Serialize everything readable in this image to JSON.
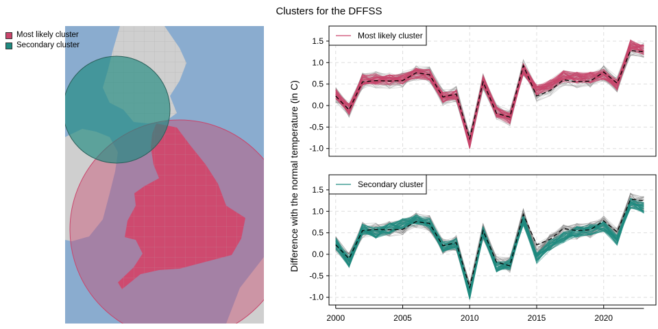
{
  "title": "Clusters for the DFFSS",
  "map_legend": [
    {
      "label": "Most likely cluster",
      "color": "#c9456b"
    },
    {
      "label": "Secondary cluster",
      "color": "#1f8a80"
    }
  ],
  "chart_data": {
    "type": "line",
    "ylabel": "Difference with the normal temperature (in C)",
    "xlim": [
      1999.5,
      2023.9
    ],
    "ylim": [
      -1.18,
      1.85
    ],
    "x_ticks": [
      2000,
      2005,
      2010,
      2015,
      2020
    ],
    "y_ticks": [
      -1.0,
      -0.5,
      0.0,
      0.5,
      1.0,
      1.5
    ],
    "grid": true,
    "x": [
      2000,
      2001,
      2002,
      2003,
      2004,
      2005,
      2006,
      2007,
      2008,
      2009,
      2010,
      2011,
      2012,
      2013,
      2014,
      2015,
      2016,
      2017,
      2018,
      2019,
      2020,
      2021,
      2022,
      2023
    ],
    "overall_mean": [
      0.22,
      -0.1,
      0.55,
      0.58,
      0.57,
      0.58,
      0.76,
      0.72,
      0.2,
      0.27,
      -0.77,
      0.55,
      -0.18,
      -0.27,
      0.93,
      0.22,
      0.35,
      0.6,
      0.55,
      0.57,
      0.78,
      0.52,
      1.28,
      1.25
    ],
    "panels": [
      {
        "legend": "Most likely cluster",
        "color": "#c9456b",
        "cluster_mean": [
          0.27,
          -0.08,
          0.6,
          0.62,
          0.6,
          0.62,
          0.76,
          0.72,
          0.18,
          0.25,
          -0.88,
          0.58,
          -0.15,
          -0.3,
          0.85,
          0.35,
          0.48,
          0.68,
          0.65,
          0.65,
          0.72,
          0.48,
          1.4,
          1.3
        ]
      },
      {
        "legend": "Secondary cluster",
        "color": "#1f8a80",
        "cluster_mean": [
          0.25,
          -0.18,
          0.58,
          0.5,
          0.6,
          0.7,
          0.82,
          0.72,
          0.17,
          0.25,
          -0.93,
          0.52,
          -0.28,
          -0.23,
          0.8,
          -0.1,
          0.22,
          0.4,
          0.52,
          0.57,
          0.65,
          0.33,
          1.2,
          1.08
        ]
      }
    ]
  }
}
